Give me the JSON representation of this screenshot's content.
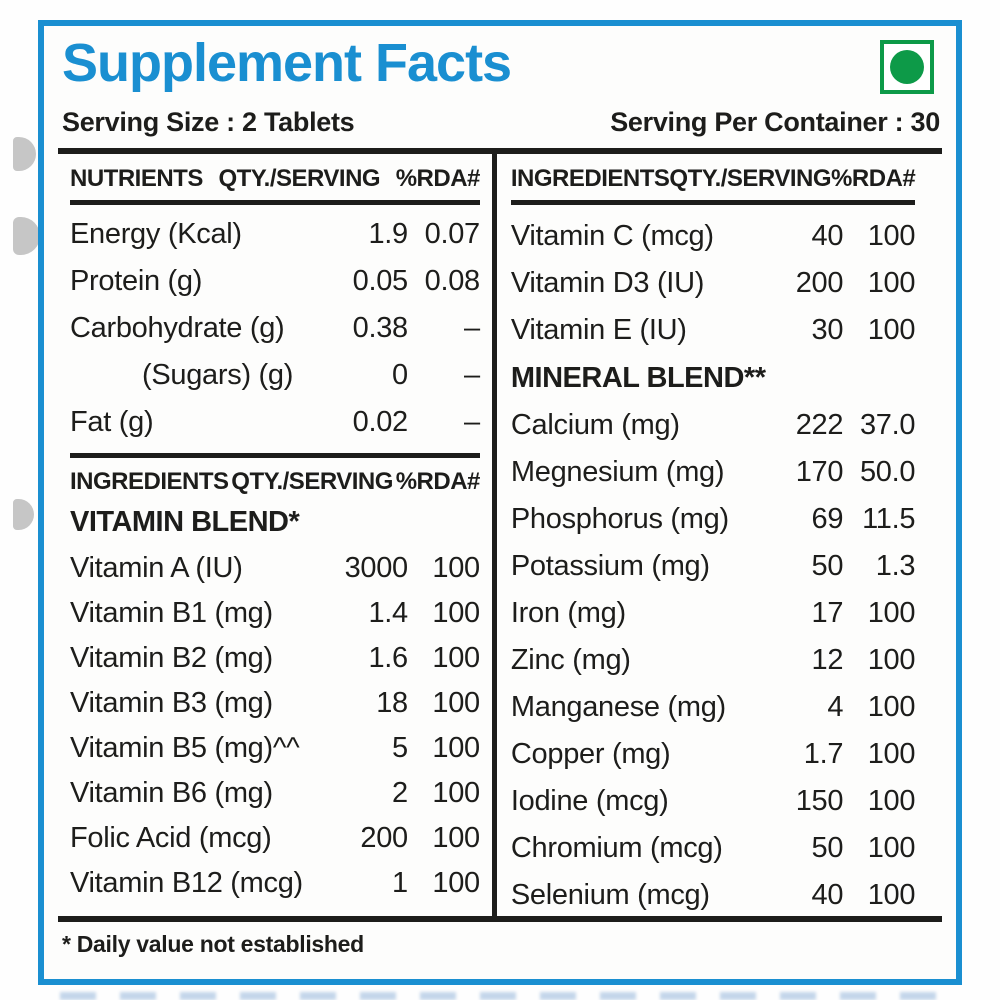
{
  "label": {
    "title": "Supplement Facts",
    "serving_size": "Serving Size : 2 Tablets",
    "serving_per_container": "Serving Per Container : 30",
    "footnote": "* Daily value not established",
    "icons": {
      "veg_mark": "green-dot-vegetarian-icon"
    },
    "colors": {
      "accent_blue": "#1a8fd1",
      "veg_green": "#0d9a48",
      "text": "#1d1d1b"
    }
  },
  "left_column": {
    "nutrients_header": {
      "col1": "NUTRIENTS",
      "col2": "QTY./SERVING",
      "col3": "%RDA#"
    },
    "nutrients_rows": [
      {
        "name": "Energy (Kcal)",
        "qty": "1.9",
        "rda": "0.07"
      },
      {
        "name": "Protein (g)",
        "qty": "0.05",
        "rda": "0.08"
      },
      {
        "name": "Carbohydrate (g)",
        "qty": "0.38",
        "rda": "–"
      },
      {
        "name": "(Sugars) (g)",
        "qty": "0",
        "rda": "–"
      },
      {
        "name": "Fat (g)",
        "qty": "0.02",
        "rda": "–"
      }
    ],
    "ingredients_header": {
      "col1": "INGREDIENTS",
      "col2": "QTY./SERVING",
      "col3": "%RDA#"
    },
    "vitamin_blend_title": "VITAMIN BLEND*",
    "vitamin_rows": [
      {
        "name": "Vitamin A (IU)",
        "qty": "3000",
        "rda": "100"
      },
      {
        "name": "Vitamin B1 (mg)",
        "qty": "1.4",
        "rda": "100"
      },
      {
        "name": "Vitamin B2 (mg)",
        "qty": "1.6",
        "rda": "100"
      },
      {
        "name": "Vitamin B3 (mg)",
        "qty": "18",
        "rda": "100"
      },
      {
        "name": "Vitamin B5 (mg)^^",
        "qty": "5",
        "rda": "100"
      },
      {
        "name": "Vitamin B6 (mg)",
        "qty": "2",
        "rda": "100"
      },
      {
        "name": "Folic Acid (mcg)",
        "qty": "200",
        "rda": "100"
      },
      {
        "name": "Vitamin B12 (mcg)",
        "qty": "1",
        "rda": "100"
      }
    ]
  },
  "right_column": {
    "ingredients_header": {
      "col1": "INGREDIENTS",
      "col2": "QTY./SERVING",
      "col3": "%RDA#"
    },
    "vitamin_rows": [
      {
        "name": "Vitamin C (mcg)",
        "qty": "40",
        "rda": "100"
      },
      {
        "name": "Vitamin D3 (IU)",
        "qty": "200",
        "rda": "100"
      },
      {
        "name": "Vitamin E (IU)",
        "qty": "30",
        "rda": "100"
      }
    ],
    "mineral_blend_title": "MINERAL BLEND**",
    "mineral_rows": [
      {
        "name": "Calcium (mg)",
        "qty": "222",
        "rda": "37.0"
      },
      {
        "name": "Megnesium (mg)",
        "qty": "170",
        "rda": "50.0"
      },
      {
        "name": "Phosphorus (mg)",
        "qty": "69",
        "rda": "11.5"
      },
      {
        "name": "Potassium (mg)",
        "qty": "50",
        "rda": "1.3"
      },
      {
        "name": "Iron (mg)",
        "qty": "17",
        "rda": "100"
      },
      {
        "name": "Zinc (mg)",
        "qty": "12",
        "rda": "100"
      },
      {
        "name": "Manganese (mg)",
        "qty": "4",
        "rda": "100"
      },
      {
        "name": "Copper (mg)",
        "qty": "1.7",
        "rda": "100"
      },
      {
        "name": "Iodine (mcg)",
        "qty": "150",
        "rda": "100"
      },
      {
        "name": "Chromium (mcg)",
        "qty": "50",
        "rda": "100"
      },
      {
        "name": "Selenium (mcg)",
        "qty": "40",
        "rda": "100"
      }
    ]
  }
}
